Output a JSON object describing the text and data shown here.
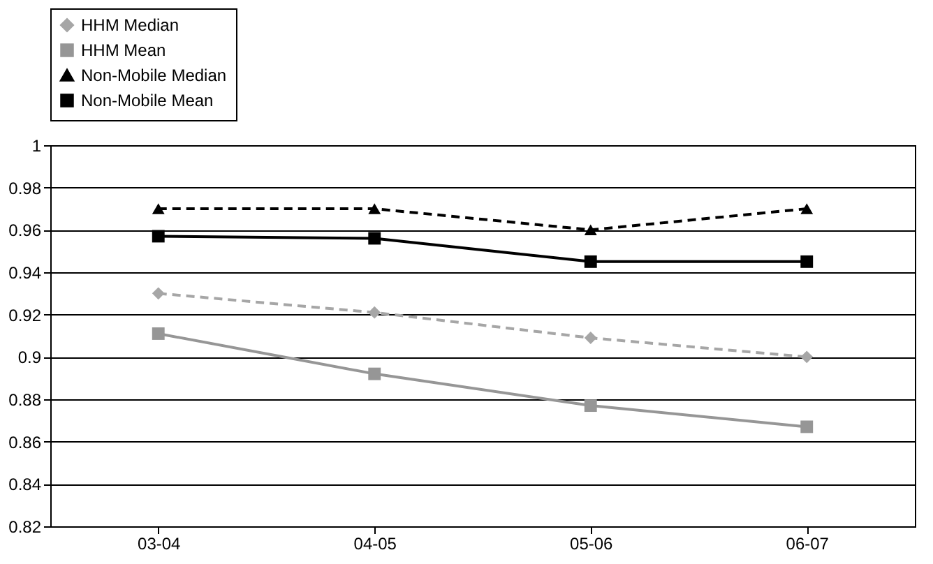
{
  "chart_data": {
    "type": "line",
    "categories": [
      "03-04",
      "04-05",
      "05-06",
      "06-07"
    ],
    "series": [
      {
        "name": "HHM Median",
        "color": "#a6a6a6",
        "marker": "diamond",
        "line_style": "dashed",
        "values": [
          0.93,
          0.921,
          0.909,
          0.9
        ]
      },
      {
        "name": "HHM Mean",
        "color": "#969696",
        "marker": "square",
        "line_style": "solid",
        "values": [
          0.911,
          0.892,
          0.877,
          0.867
        ]
      },
      {
        "name": "Non-Mobile Median",
        "color": "#000000",
        "marker": "triangle",
        "line_style": "dashed",
        "values": [
          0.97,
          0.97,
          0.96,
          0.97
        ]
      },
      {
        "name": "Non-Mobile Mean",
        "color": "#000000",
        "marker": "square",
        "line_style": "solid",
        "values": [
          0.957,
          0.956,
          0.945,
          0.945
        ]
      }
    ],
    "ylim": [
      0.82,
      1
    ],
    "yticks": [
      0.82,
      0.84,
      0.86,
      0.88,
      0.9,
      0.92,
      0.94,
      0.96,
      0.98,
      1
    ],
    "grid": "y",
    "legend": "top"
  }
}
